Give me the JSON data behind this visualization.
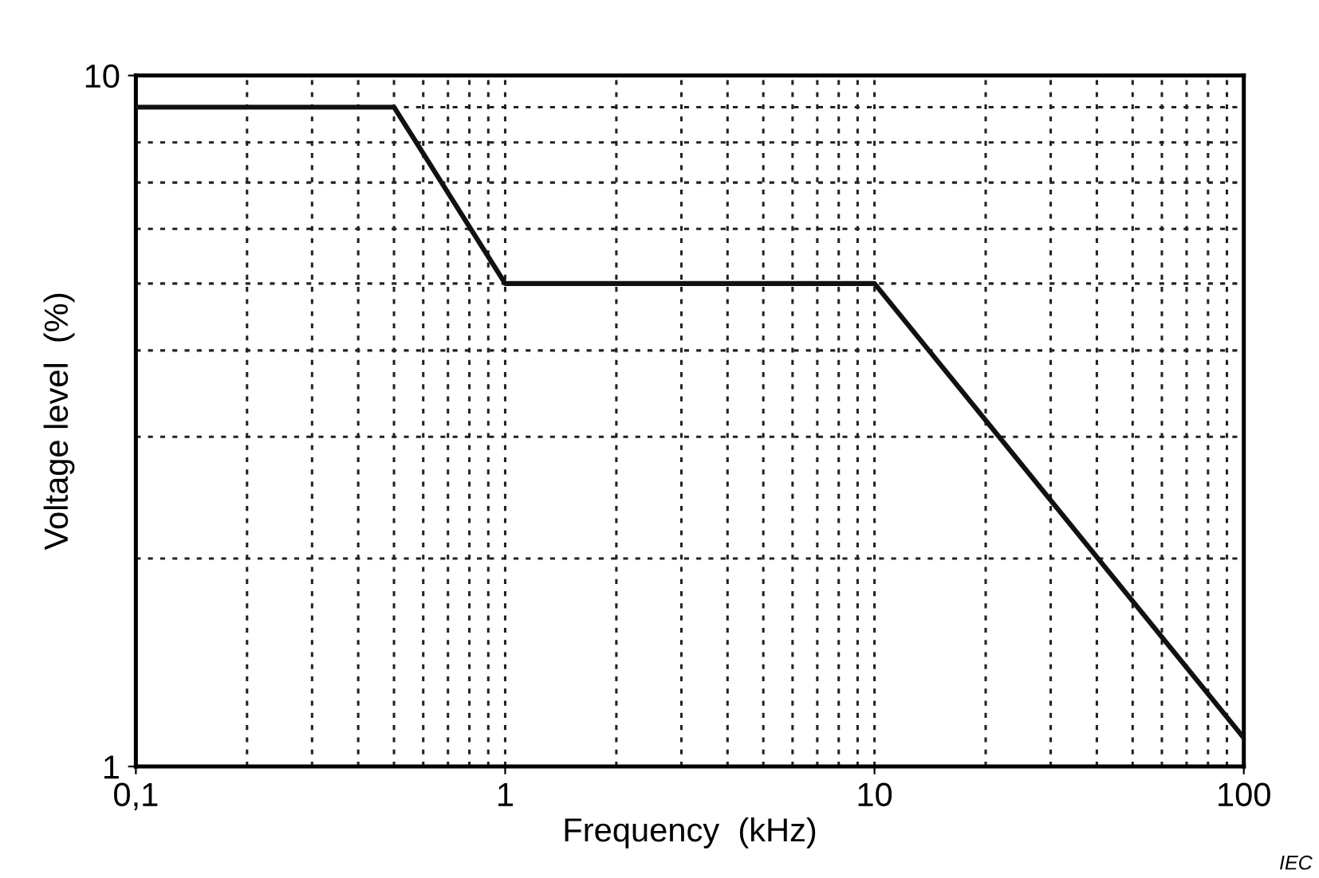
{
  "chart_data": {
    "type": "line",
    "xlabel": "Frequency  (kHz)",
    "ylabel": "Voltage level  (%)",
    "x": [
      0.1,
      0.5,
      1,
      10,
      100
    ],
    "series": [
      {
        "color": "#111111",
        "values": [
          9,
          9,
          5,
          5,
          1.1
        ]
      }
    ],
    "log": "xy",
    "xlim": [
      0.1,
      100
    ],
    "ylim": [
      1,
      10
    ],
    "xticks": [
      {
        "value": 0.1,
        "label": "0,1"
      },
      1,
      10,
      100
    ],
    "yticks": [
      1,
      10
    ],
    "grid": true,
    "marker": "none",
    "line_style": "solid",
    "annotations": [
      "IEC"
    ]
  }
}
